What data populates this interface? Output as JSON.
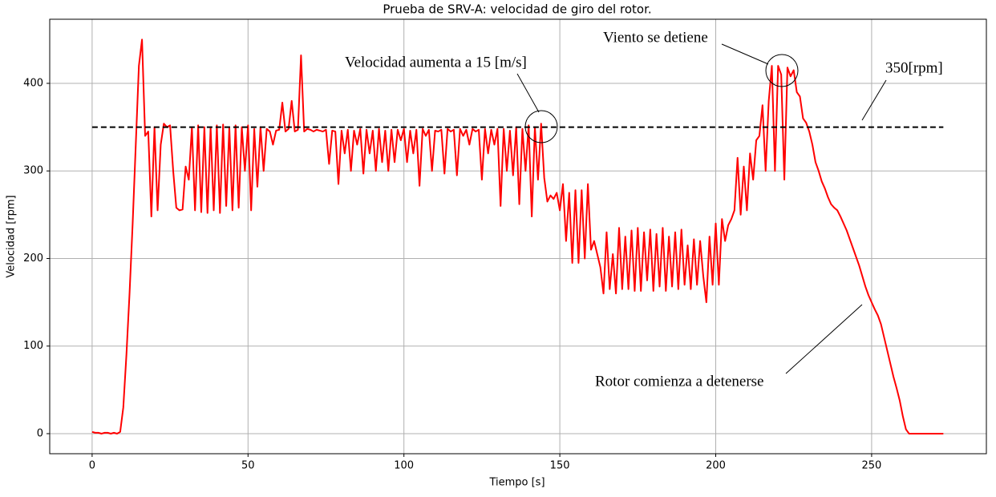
{
  "chart_data": {
    "type": "line",
    "title": "Prueba de SRV-A: velocidad de giro del rotor.",
    "x_label": "Tiempo [s]",
    "y_label": "Velocidad [rpm]",
    "x": [
      0,
      1,
      2,
      3,
      4,
      5,
      6,
      7,
      8,
      9,
      10,
      11,
      12,
      13,
      14,
      15,
      16,
      17,
      18,
      19,
      20,
      21,
      22,
      23,
      24,
      25,
      26,
      27,
      28,
      29,
      30,
      31,
      32,
      33,
      34,
      35,
      36,
      37,
      38,
      39,
      40,
      41,
      42,
      43,
      44,
      45,
      46,
      47,
      48,
      49,
      50,
      51,
      52,
      53,
      54,
      55,
      56,
      57,
      58,
      59,
      60,
      61,
      62,
      63,
      64,
      65,
      66,
      67,
      68,
      69,
      70,
      71,
      72,
      73,
      74,
      75,
      76,
      77,
      78,
      79,
      80,
      81,
      82,
      83,
      84,
      85,
      86,
      87,
      88,
      89,
      90,
      91,
      92,
      93,
      94,
      95,
      96,
      97,
      98,
      99,
      100,
      101,
      102,
      103,
      104,
      105,
      106,
      107,
      108,
      109,
      110,
      111,
      112,
      113,
      114,
      115,
      116,
      117,
      118,
      119,
      120,
      121,
      122,
      123,
      124,
      125,
      126,
      127,
      128,
      129,
      130,
      131,
      132,
      133,
      134,
      135,
      136,
      137,
      138,
      139,
      140,
      141,
      142,
      143,
      144,
      145,
      146,
      147,
      148,
      149,
      150,
      151,
      152,
      153,
      154,
      155,
      156,
      157,
      158,
      159,
      160,
      161,
      162,
      163,
      164,
      165,
      166,
      167,
      168,
      169,
      170,
      171,
      172,
      173,
      174,
      175,
      176,
      177,
      178,
      179,
      180,
      181,
      182,
      183,
      184,
      185,
      186,
      187,
      188,
      189,
      190,
      191,
      192,
      193,
      194,
      195,
      196,
      197,
      198,
      199,
      200,
      201,
      202,
      203,
      204,
      205,
      206,
      207,
      208,
      209,
      210,
      211,
      212,
      213,
      214,
      215,
      216,
      217,
      218,
      219,
      220,
      221,
      222,
      223,
      224,
      225,
      226,
      227,
      228,
      229,
      230,
      231,
      232,
      233,
      234,
      235,
      236,
      237,
      238,
      239,
      240,
      241,
      242,
      243,
      244,
      245,
      246,
      247,
      248,
      249,
      250,
      251,
      252,
      253,
      254,
      255,
      256,
      257,
      258,
      259,
      260,
      261,
      262,
      263,
      264,
      265,
      266,
      267,
      268,
      269,
      270,
      271,
      272,
      273
    ],
    "series": [
      {
        "color": "#ff0000",
        "values": [
          2,
          1,
          1,
          0,
          1,
          1,
          0,
          1,
          0,
          2,
          30,
          90,
          160,
          240,
          330,
          420,
          450,
          340,
          345,
          248,
          350,
          255,
          330,
          354,
          350,
          352,
          300,
          258,
          255,
          256,
          305,
          290,
          350,
          255,
          352,
          253,
          350,
          252,
          350,
          255,
          352,
          252,
          353,
          260,
          350,
          255,
          352,
          258,
          350,
          300,
          352,
          255,
          348,
          282,
          350,
          300,
          348,
          345,
          330,
          346,
          347,
          378,
          345,
          348,
          380,
          345,
          347,
          432,
          345,
          348,
          347,
          345,
          347,
          346,
          345,
          347,
          308,
          346,
          345,
          285,
          346,
          320,
          347,
          300,
          346,
          330,
          348,
          297,
          347,
          320,
          346,
          300,
          348,
          310,
          346,
          300,
          347,
          310,
          347,
          335,
          348,
          310,
          346,
          320,
          347,
          283,
          348,
          340,
          347,
          300,
          346,
          345,
          347,
          297,
          348,
          345,
          347,
          295,
          348,
          340,
          347,
          330,
          348,
          345,
          347,
          290,
          348,
          320,
          347,
          330,
          348,
          260,
          348,
          300,
          346,
          295,
          350,
          262,
          348,
          300,
          352,
          248,
          350,
          290,
          354,
          292,
          265,
          272,
          268,
          275,
          255,
          285,
          220,
          275,
          195,
          278,
          195,
          278,
          200,
          285,
          210,
          220,
          205,
          190,
          160,
          230,
          165,
          205,
          160,
          235,
          165,
          225,
          165,
          232,
          163,
          235,
          163,
          230,
          175,
          233,
          163,
          228,
          168,
          235,
          163,
          225,
          168,
          230,
          165,
          233,
          170,
          215,
          165,
          222,
          170,
          220,
          180,
          150,
          225,
          170,
          240,
          170,
          245,
          220,
          238,
          245,
          255,
          315,
          250,
          305,
          255,
          320,
          290,
          335,
          340,
          375,
          300,
          380,
          420,
          300,
          420,
          410,
          290,
          418,
          408,
          415,
          390,
          385,
          360,
          355,
          345,
          330,
          310,
          300,
          288,
          280,
          270,
          262,
          258,
          255,
          248,
          240,
          232,
          222,
          212,
          202,
          192,
          180,
          168,
          158,
          150,
          142,
          135,
          125,
          110,
          95,
          80,
          65,
          52,
          38,
          20,
          5,
          0,
          0,
          0,
          0,
          0,
          0,
          0,
          0,
          0,
          0,
          0,
          0
        ]
      }
    ],
    "reference_line": {
      "y": 350,
      "x": [
        0,
        273
      ],
      "color": "#000000"
    },
    "annotations": [
      "Velocidad aumenta a 15 [m/s]",
      "Viento se detiene",
      "350[rpm]",
      "Rotor comienza a detenerse"
    ],
    "xlim": [
      -13.6,
      286.8
    ],
    "ylim": [
      -22.9,
      473.2
    ],
    "xticks": [
      0,
      50,
      100,
      150,
      200,
      250
    ],
    "yticks": [
      0,
      100,
      200,
      300,
      400
    ],
    "grid": true
  }
}
